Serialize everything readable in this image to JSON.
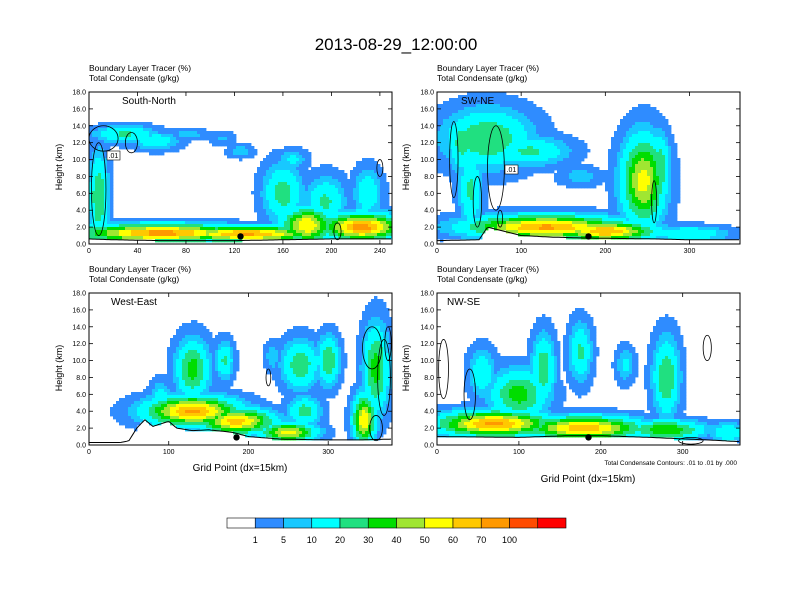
{
  "title": "2013-08-29_12:00:00",
  "colors": {
    "levels": [
      "#ffffff",
      "#2f8cff",
      "#18c8ff",
      "#00ffff",
      "#20e080",
      "#00dd00",
      "#a0e632",
      "#ffff00",
      "#ffc800",
      "#ff9900",
      "#ff4b00",
      "#ff0000"
    ],
    "contour": "#000000"
  },
  "colorbar": {
    "labels": [
      "1",
      "5",
      "10",
      "20",
      "30",
      "40",
      "50",
      "60",
      "70",
      "100"
    ]
  },
  "panels": [
    {
      "title_line1": "Boundary Layer Tracer   (%)",
      "title_line2": "Total Condensate   (g/kg)",
      "label": "South-North",
      "ylabel": "Height (km)",
      "xlabel": "",
      "contour_note": "",
      "contour_label": ".01"
    },
    {
      "title_line1": "Boundary Layer Tracer   (%)",
      "title_line2": "Total Condensate   (g/kg)",
      "label": "SW-NE",
      "ylabel": "Height (km)",
      "xlabel": "",
      "contour_note": "",
      "contour_label": ".01"
    },
    {
      "title_line1": "Boundary Layer Tracer   (%)",
      "title_line2": "Total Condensate   (g/kg)",
      "label": "West-East",
      "ylabel": "Height (km)",
      "xlabel": "Grid Point (dx=15km)",
      "contour_note": "",
      "contour_label": ""
    },
    {
      "title_line1": "Boundary Layer Tracer   (%)",
      "title_line2": "Total Condensate   (g/kg)",
      "label": "NW-SE",
      "ylabel": "Height (km)",
      "xlabel": "Grid Point (dx=15km)",
      "contour_note": "Total Condensate Contours: .01 to .01 by .000",
      "contour_label": ""
    }
  ],
  "chart_data": [
    {
      "type": "heatmap",
      "title": "South-North",
      "xlabel": "",
      "ylabel": "Height (km)",
      "xlim": [
        0,
        250
      ],
      "ylim": [
        0,
        18
      ],
      "xticks": [
        0,
        40,
        80,
        120,
        160,
        200,
        240
      ],
      "yticks": [
        0,
        2,
        4,
        6,
        8,
        10,
        12,
        14,
        16,
        18
      ],
      "terrain": [
        [
          0,
          0.6
        ],
        [
          20,
          0.5
        ],
        [
          60,
          0.4
        ],
        [
          120,
          0.4
        ],
        [
          160,
          0.5
        ],
        [
          200,
          0.6
        ],
        [
          250,
          0.6
        ]
      ],
      "blobs": [
        {
          "x": 60,
          "z": 1.3,
          "sx": 60,
          "sz": 0.9,
          "a": 75
        },
        {
          "x": 130,
          "z": 1.2,
          "sx": 50,
          "sz": 0.8,
          "a": 72
        },
        {
          "x": 225,
          "z": 2.0,
          "sx": 28,
          "sz": 1.4,
          "a": 75
        },
        {
          "x": 180,
          "z": 2.2,
          "sx": 18,
          "sz": 1.8,
          "a": 60
        },
        {
          "x": 160,
          "z": 6.0,
          "sx": 14,
          "sz": 3.0,
          "a": 25
        },
        {
          "x": 195,
          "z": 5.0,
          "sx": 14,
          "sz": 2.5,
          "a": 22
        },
        {
          "x": 230,
          "z": 6.0,
          "sx": 10,
          "sz": 2.5,
          "a": 18
        },
        {
          "x": 30,
          "z": 13.0,
          "sx": 22,
          "sz": 0.9,
          "a": 22
        },
        {
          "x": 55,
          "z": 12.2,
          "sx": 16,
          "sz": 0.9,
          "a": 18
        },
        {
          "x": 82,
          "z": 13.0,
          "sx": 14,
          "sz": 0.6,
          "a": 8
        },
        {
          "x": 110,
          "z": 12.5,
          "sx": 9,
          "sz": 0.7,
          "a": 6
        },
        {
          "x": 125,
          "z": 11.0,
          "sx": 9,
          "sz": 0.7,
          "a": 8
        },
        {
          "x": 168,
          "z": 10.0,
          "sx": 10,
          "sz": 1.0,
          "a": 12
        },
        {
          "x": 8,
          "z": 5.5,
          "sx": 7,
          "sz": 4.5,
          "a": 30
        }
      ],
      "contours": [
        {
          "x": 12,
          "z": 12.5,
          "rx": 12,
          "rz": 1.5
        },
        {
          "x": 8,
          "z": 6.5,
          "rx": 6,
          "rz": 5.5
        },
        {
          "x": 35,
          "z": 12.0,
          "rx": 5,
          "rz": 1.2
        },
        {
          "x": 240,
          "z": 9.0,
          "rx": 2.5,
          "rz": 1.0
        },
        {
          "x": 205,
          "z": 1.5,
          "rx": 3,
          "rz": 1.0
        }
      ],
      "marker": {
        "x": 125,
        "z": 0.9
      }
    },
    {
      "type": "heatmap",
      "title": "SW-NE",
      "xlabel": "",
      "ylabel": "Height (km)",
      "xlim": [
        0,
        360
      ],
      "ylim": [
        0,
        18
      ],
      "xticks": [
        0,
        100,
        200,
        300
      ],
      "yticks": [
        0,
        2,
        4,
        6,
        8,
        10,
        12,
        14,
        16,
        18
      ],
      "terrain": [
        [
          0,
          0.4
        ],
        [
          50,
          0.5
        ],
        [
          60,
          2.0
        ],
        [
          80,
          1.5
        ],
        [
          100,
          1.0
        ],
        [
          140,
          0.8
        ],
        [
          180,
          0.7
        ],
        [
          260,
          0.6
        ],
        [
          300,
          0.5
        ],
        [
          360,
          0.5
        ]
      ],
      "blobs": [
        {
          "x": 130,
          "z": 2.0,
          "sx": 80,
          "sz": 1.2,
          "a": 72
        },
        {
          "x": 200,
          "z": 1.5,
          "sx": 50,
          "sz": 1.0,
          "a": 70
        },
        {
          "x": 245,
          "z": 7.5,
          "sx": 22,
          "sz": 4.5,
          "a": 55
        },
        {
          "x": 265,
          "z": 9.0,
          "sx": 10,
          "sz": 3.5,
          "a": 30
        },
        {
          "x": 60,
          "z": 12.5,
          "sx": 45,
          "sz": 3.0,
          "a": 30
        },
        {
          "x": 110,
          "z": 11.0,
          "sx": 40,
          "sz": 1.5,
          "a": 22
        },
        {
          "x": 40,
          "z": 6.5,
          "sx": 12,
          "sz": 4.0,
          "a": 22
        },
        {
          "x": 30,
          "z": 12.0,
          "sx": 15,
          "sz": 3.0,
          "a": 25
        },
        {
          "x": 170,
          "z": 8.0,
          "sx": 22,
          "sz": 1.0,
          "a": 8
        },
        {
          "x": 300,
          "z": 1.2,
          "sx": 40,
          "sz": 0.8,
          "a": 20
        }
      ],
      "contours": [
        {
          "x": 20,
          "z": 10.0,
          "rx": 5,
          "rz": 4.5
        },
        {
          "x": 70,
          "z": 9.0,
          "rx": 10,
          "rz": 5.0
        },
        {
          "x": 48,
          "z": 5.0,
          "rx": 5,
          "rz": 3.0
        },
        {
          "x": 258,
          "z": 5.0,
          "rx": 3,
          "rz": 2.5
        },
        {
          "x": 75,
          "z": 3.0,
          "rx": 3,
          "rz": 1.0
        }
      ],
      "marker": {
        "x": 180,
        "z": 0.9
      }
    },
    {
      "type": "heatmap",
      "title": "West-East",
      "xlabel": "Grid Point (dx=15km)",
      "ylabel": "Height (km)",
      "xlim": [
        0,
        380
      ],
      "ylim": [
        0,
        18
      ],
      "xticks": [
        0,
        100,
        200,
        300
      ],
      "yticks": [
        0,
        2,
        4,
        6,
        8,
        10,
        12,
        14,
        16,
        18
      ],
      "terrain": [
        [
          0,
          0.3
        ],
        [
          40,
          0.3
        ],
        [
          50,
          0.5
        ],
        [
          60,
          2.0
        ],
        [
          70,
          3.0
        ],
        [
          80,
          2.2
        ],
        [
          90,
          2.5
        ],
        [
          100,
          2.8
        ],
        [
          110,
          2.0
        ],
        [
          130,
          1.7
        ],
        [
          150,
          1.8
        ],
        [
          180,
          1.5
        ],
        [
          200,
          1.0
        ],
        [
          240,
          0.7
        ],
        [
          300,
          0.6
        ],
        [
          340,
          0.6
        ],
        [
          380,
          0.7
        ]
      ],
      "blobs": [
        {
          "x": 130,
          "z": 4.0,
          "sx": 50,
          "sz": 1.5,
          "a": 72
        },
        {
          "x": 185,
          "z": 2.8,
          "sx": 40,
          "sz": 1.3,
          "a": 65
        },
        {
          "x": 250,
          "z": 1.5,
          "sx": 30,
          "sz": 1.0,
          "a": 55
        },
        {
          "x": 345,
          "z": 3.0,
          "sx": 12,
          "sz": 2.5,
          "a": 60
        },
        {
          "x": 130,
          "z": 9.0,
          "sx": 18,
          "sz": 3.0,
          "a": 35
        },
        {
          "x": 170,
          "z": 10.0,
          "sx": 10,
          "sz": 2.0,
          "a": 22
        },
        {
          "x": 265,
          "z": 9.5,
          "sx": 20,
          "sz": 2.5,
          "a": 28
        },
        {
          "x": 300,
          "z": 10.0,
          "sx": 12,
          "sz": 2.5,
          "a": 30
        },
        {
          "x": 230,
          "z": 10.5,
          "sx": 8,
          "sz": 1.5,
          "a": 10
        },
        {
          "x": 360,
          "z": 9.0,
          "sx": 14,
          "sz": 4.5,
          "a": 35
        },
        {
          "x": 270,
          "z": 4.0,
          "sx": 18,
          "sz": 1.5,
          "a": 25
        },
        {
          "x": 90,
          "z": 5.0,
          "sx": 12,
          "sz": 2.0,
          "a": 20
        }
      ],
      "contours": [
        {
          "x": 355,
          "z": 11.5,
          "rx": 12,
          "rz": 2.5
        },
        {
          "x": 370,
          "z": 8.0,
          "rx": 8,
          "rz": 4.5
        },
        {
          "x": 225,
          "z": 8.0,
          "rx": 3,
          "rz": 1.0
        },
        {
          "x": 360,
          "z": 2.0,
          "rx": 8,
          "rz": 1.5
        },
        {
          "x": 375,
          "z": 12.0,
          "rx": 4,
          "rz": 2.0
        }
      ],
      "marker": {
        "x": 185,
        "z": 0.9
      }
    },
    {
      "type": "heatmap",
      "title": "NW-SE",
      "xlabel": "Grid Point (dx=15km)",
      "ylabel": "Height (km)",
      "xlim": [
        0,
        370
      ],
      "ylim": [
        0,
        18
      ],
      "xticks": [
        0,
        100,
        200,
        300
      ],
      "yticks": [
        0,
        2,
        4,
        6,
        8,
        10,
        12,
        14,
        16,
        18
      ],
      "terrain": [
        [
          0,
          1.0
        ],
        [
          100,
          0.9
        ],
        [
          160,
          1.1
        ],
        [
          200,
          1.1
        ],
        [
          260,
          0.9
        ],
        [
          330,
          0.6
        ],
        [
          370,
          0.4
        ]
      ],
      "blobs": [
        {
          "x": 70,
          "z": 2.5,
          "sx": 60,
          "sz": 1.3,
          "a": 72
        },
        {
          "x": 180,
          "z": 2.0,
          "sx": 60,
          "sz": 1.2,
          "a": 68
        },
        {
          "x": 280,
          "z": 1.8,
          "sx": 40,
          "sz": 1.0,
          "a": 40
        },
        {
          "x": 100,
          "z": 6.0,
          "sx": 30,
          "sz": 2.5,
          "a": 35
        },
        {
          "x": 130,
          "z": 9.0,
          "sx": 12,
          "sz": 3.5,
          "a": 28
        },
        {
          "x": 55,
          "z": 8.5,
          "sx": 14,
          "sz": 2.5,
          "a": 18
        },
        {
          "x": 175,
          "z": 11.0,
          "sx": 12,
          "sz": 3.0,
          "a": 22
        },
        {
          "x": 280,
          "z": 8.0,
          "sx": 14,
          "sz": 4.0,
          "a": 30
        },
        {
          "x": 230,
          "z": 9.5,
          "sx": 10,
          "sz": 1.8,
          "a": 12
        },
        {
          "x": 355,
          "z": 1.5,
          "sx": 18,
          "sz": 1.0,
          "a": 20
        }
      ],
      "contours": [
        {
          "x": 8,
          "z": 9.0,
          "rx": 6,
          "rz": 3.5
        },
        {
          "x": 40,
          "z": 6.0,
          "rx": 7,
          "rz": 3.0
        },
        {
          "x": 330,
          "z": 11.5,
          "rx": 5,
          "rz": 1.5
        },
        {
          "x": 310,
          "z": 0.5,
          "rx": 15,
          "rz": 0.4
        }
      ],
      "marker": {
        "x": 185,
        "z": 0.9
      }
    }
  ]
}
